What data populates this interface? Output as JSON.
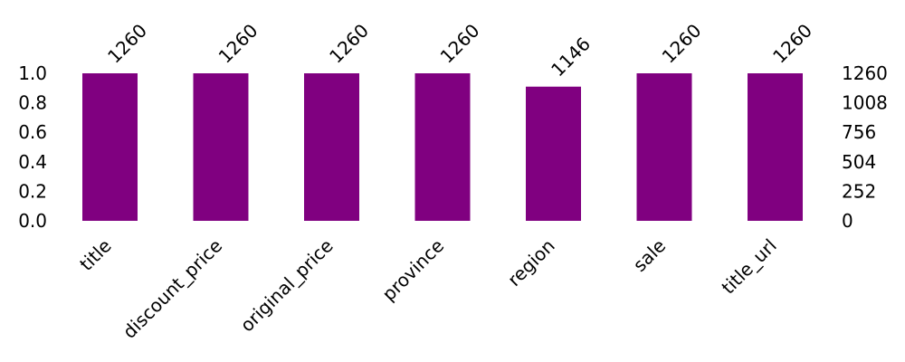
{
  "chart_data": {
    "type": "bar",
    "title": "",
    "xlabel": "",
    "ylabel": "",
    "categories": [
      "title",
      "discount_price",
      "original_price",
      "province",
      "region",
      "sale",
      "title_url"
    ],
    "values": [
      1260,
      1260,
      1260,
      1260,
      1146,
      1260,
      1260
    ],
    "total": 1260,
    "bar_labels": [
      "1260",
      "1260",
      "1260",
      "1260",
      "1146",
      "1260",
      "1260"
    ],
    "ylim": [
      0,
      1.0
    ],
    "left_ticks": [
      "0.0",
      "0.2",
      "0.4",
      "0.6",
      "0.8",
      "1.0"
    ],
    "right_ticks": [
      "0",
      "252",
      "504",
      "756",
      "1008",
      "1260"
    ],
    "grid": false,
    "legend": "none",
    "bar_color": "#800080"
  }
}
